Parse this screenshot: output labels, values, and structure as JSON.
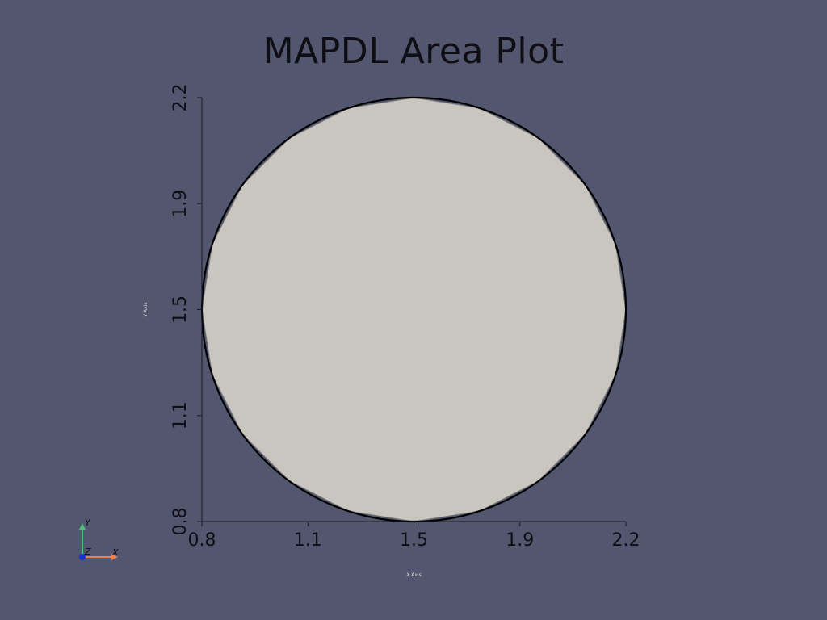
{
  "chart_data": {
    "type": "area",
    "title": "MAPDL Area Plot",
    "xlabel": "X Axis",
    "ylabel": "Y Axis",
    "xlim": [
      0.8,
      2.2
    ],
    "ylim": [
      0.8,
      2.2
    ],
    "xticks": [
      "0.8",
      "1.1",
      "1.5",
      "1.9",
      "2.2"
    ],
    "xtick_values": [
      0.8,
      1.15,
      1.5,
      1.85,
      2.2
    ],
    "yticks": [
      "0.8",
      "1.1",
      "1.5",
      "1.9",
      "2.2"
    ],
    "ytick_values": [
      0.8,
      1.15,
      1.5,
      1.85,
      2.2
    ],
    "shape": {
      "kind": "circle",
      "center": [
        1.5,
        1.5
      ],
      "radius": 0.7
    },
    "fill_color": "#c9c6bf",
    "edge_color": "#000000",
    "grid": false
  },
  "orientation_widget": {
    "x_label": "X",
    "y_label": "Y",
    "z_label": "Z",
    "x_color": "#ef7f4f",
    "y_color": "#4fbf7f",
    "z_color": "#2030d0"
  },
  "background_color": "#52566e"
}
